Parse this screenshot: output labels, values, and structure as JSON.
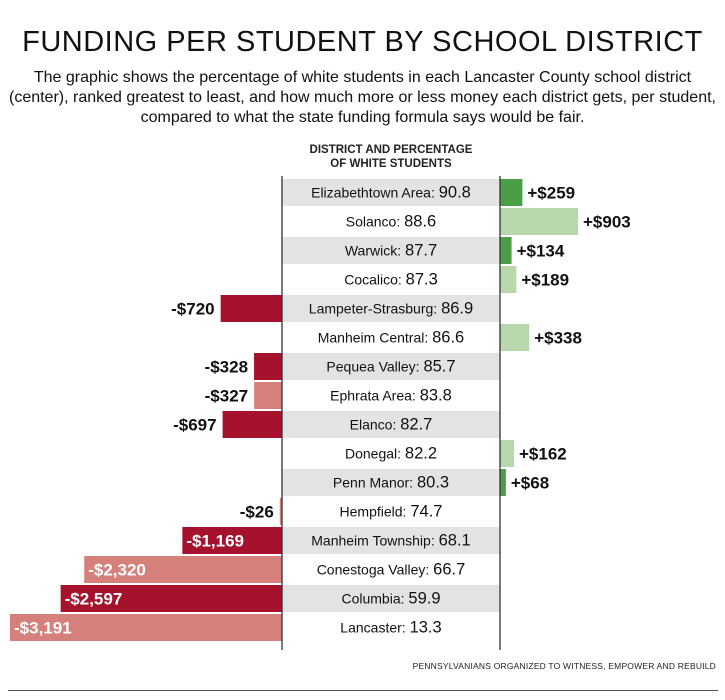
{
  "title": "FUNDING PER STUDENT BY SCHOOL DISTRICT",
  "subtitle": "The graphic shows the percentage of white students in each Lancaster County school district (center), ranked greatest to least, and how much more or less money each district gets, per student, compared to what the state funding formula says would be fair.",
  "column_header": "DISTRICT AND PERCENTAGE\nOF WHITE STUDENTS",
  "source": "PENNSYLVANIANS ORGANIZED TO WITNESS, EMPOWER AND REBUILD",
  "colors": {
    "positive_dark": "#4a9e46",
    "positive_light": "#b9d7ad",
    "negative_dark": "#a6122d",
    "negative_light": "#d6807c",
    "row_shade": "#e3e3e3"
  },
  "chart_data": {
    "type": "bar",
    "orientation": "horizontal-diverging",
    "rows": [
      {
        "district": "Elizabethtown Area",
        "pct_white": "90.8",
        "funding": 259,
        "funding_label": "+$259"
      },
      {
        "district": "Solanco",
        "pct_white": "88.6",
        "funding": 903,
        "funding_label": "+$903"
      },
      {
        "district": "Warwick",
        "pct_white": "87.7",
        "funding": 134,
        "funding_label": "+$134"
      },
      {
        "district": "Cocalico",
        "pct_white": "87.3",
        "funding": 189,
        "funding_label": "+$189"
      },
      {
        "district": "Lampeter-Strasburg",
        "pct_white": "86.9",
        "funding": -720,
        "funding_label": "-$720"
      },
      {
        "district": "Manheim Central",
        "pct_white": "86.6",
        "funding": 338,
        "funding_label": "+$338"
      },
      {
        "district": "Pequea Valley",
        "pct_white": "85.7",
        "funding": -328,
        "funding_label": "-$328"
      },
      {
        "district": "Ephrata Area",
        "pct_white": "83.8",
        "funding": -327,
        "funding_label": "-$327"
      },
      {
        "district": "Elanco",
        "pct_white": "82.7",
        "funding": -697,
        "funding_label": "-$697"
      },
      {
        "district": "Donegal",
        "pct_white": "82.2",
        "funding": 162,
        "funding_label": "+$162"
      },
      {
        "district": "Penn Manor",
        "pct_white": "80.3",
        "funding": 68,
        "funding_label": "+$68"
      },
      {
        "district": "Hempfield",
        "pct_white": "74.7",
        "funding": -26,
        "funding_label": "-$26"
      },
      {
        "district": "Manheim Township",
        "pct_white": "68.1",
        "funding": -1169,
        "funding_label": "-$1,169"
      },
      {
        "district": "Conestoga Valley",
        "pct_white": "66.7",
        "funding": -2320,
        "funding_label": "-$2,320"
      },
      {
        "district": "Columbia",
        "pct_white": "59.9",
        "funding": -2597,
        "funding_label": "-$2,597"
      },
      {
        "district": "Lancaster",
        "pct_white": "13.3",
        "funding": -3191,
        "funding_label": "-$3,191"
      }
    ]
  }
}
